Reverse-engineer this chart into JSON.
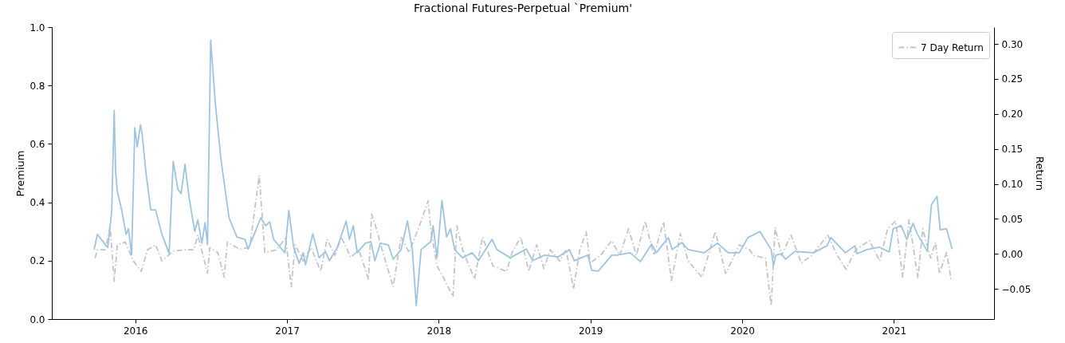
{
  "chart_data": {
    "type": "line",
    "title": "Fractional Futures-Perpetual `Premium'",
    "ylabel": "Premium",
    "y2label": "Return",
    "xlim": [
      2015.45,
      2021.66
    ],
    "xticks": [
      2016,
      2017,
      2018,
      2019,
      2020,
      2021
    ],
    "ylim": [
      0,
      1.0
    ],
    "yticks": [
      {
        "value": 0,
        "label": "0.0"
      },
      0.2,
      0.4,
      0.6,
      0.8,
      {
        "value": 1.0,
        "label": "1.0"
      }
    ],
    "y2lim": [
      -0.093,
      0.324
    ],
    "y2ticks": [
      {
        "value": -0.05,
        "label": "−0.05"
      },
      {
        "value": 0,
        "label": "0.00"
      },
      0.05,
      {
        "value": 0.1,
        "label": "0.10"
      },
      0.15,
      {
        "value": 0.2,
        "label": "0.20"
      },
      0.25,
      {
        "value": 0.3,
        "label": "0.30"
      }
    ],
    "legend": "top right",
    "series": [
      {
        "name": "7 Day Return",
        "color": "#c4c4c4",
        "axis": "y2",
        "line_style": "dashed",
        "x": [
          2015.735,
          2015.75,
          2015.803,
          2015.834,
          2015.861,
          2015.882,
          2015.934,
          2015.987,
          2016.039,
          2016.081,
          2016.134,
          2016.176,
          2016.25,
          2016.318,
          2016.386,
          2016.412,
          2016.476,
          2016.491,
          2016.544,
          2016.586,
          2016.607,
          2016.686,
          2016.754,
          2016.817,
          2016.854,
          2016.933,
          2016.991,
          2017.028,
          2017.054,
          2017.107,
          2017.159,
          2017.222,
          2017.264,
          2017.316,
          2017.358,
          2017.421,
          2017.474,
          2017.537,
          2017.558,
          2017.595,
          2017.632,
          2017.7,
          2017.752,
          2017.805,
          2017.879,
          2017.931,
          2017.947,
          2017.989,
          2018.036,
          2018.094,
          2018.12,
          2018.157,
          2018.236,
          2018.289,
          2018.357,
          2018.447,
          2018.483,
          2018.541,
          2018.593,
          2018.646,
          2018.693,
          2018.735,
          2018.798,
          2018.84,
          2018.888,
          2018.93,
          2018.972,
          2018.998,
          2019.067,
          2019.14,
          2019.193,
          2019.251,
          2019.303,
          2019.36,
          2019.418,
          2019.482,
          2019.534,
          2019.592,
          2019.644,
          2019.734,
          2019.823,
          2019.891,
          2019.981,
          2020.049,
          2020.075,
          2020.154,
          2020.191,
          2020.217,
          2020.259,
          2020.322,
          2020.39,
          2020.459,
          2020.564,
          2020.627,
          2020.685,
          2020.748,
          2020.838,
          2020.906,
          2020.959,
          2021.011,
          2021.058,
          2021.1,
          2021.158,
          2021.19,
          2021.242,
          2021.274,
          2021.3,
          2021.347,
          2021.378
        ],
        "values": [
          -0.006,
          0.006,
          0.006,
          0.04,
          -0.039,
          0.013,
          0.017,
          -0.01,
          -0.025,
          0.006,
          0.013,
          -0.01,
          0.004,
          0.006,
          0.006,
          0.027,
          -0.027,
          0.009,
          0.002,
          -0.033,
          0.017,
          0.007,
          0.009,
          0.112,
          0.002,
          0.006,
          0.023,
          -0.047,
          0.013,
          -0.01,
          0.009,
          -0.025,
          0.021,
          -0.002,
          0.024,
          -0.005,
          0.006,
          -0.036,
          0.057,
          0.032,
          0.002,
          -0.047,
          0.024,
          0.002,
          0.044,
          0.076,
          0.036,
          -0.017,
          -0.036,
          -0.061,
          0.04,
          0.006,
          -0.036,
          0.024,
          -0.017,
          -0.025,
          0.002,
          0.024,
          -0.025,
          0.013,
          -0.021,
          0.006,
          -0.01,
          0.006,
          -0.05,
          0.006,
          0.032,
          -0.013,
          -0.002,
          0.019,
          -0.002,
          0.036,
          -0.002,
          0.047,
          -0.002,
          0.046,
          -0.038,
          0.029,
          -0.01,
          -0.033,
          0.032,
          -0.028,
          0.013,
          0.006,
          -0.002,
          -0.006,
          -0.074,
          0.038,
          -0.002,
          0.027,
          -0.013,
          -0.002,
          0.027,
          -0.002,
          -0.022,
          0.006,
          0.019,
          -0.01,
          0.036,
          0.047,
          -0.033,
          0.049,
          -0.034,
          0.036,
          -0.006,
          0.017,
          -0.028,
          0.002,
          -0.038
        ]
      },
      {
        "color": "#9ec4e0",
        "line_style": "solid",
        "x": [
          2015.729,
          2015.75,
          2015.819,
          2015.845,
          2015.861,
          2015.871,
          2015.882,
          2015.908,
          2015.94,
          2015.955,
          2015.976,
          2015.997,
          2016.013,
          2016.034,
          2016.045,
          2016.071,
          2016.102,
          2016.134,
          2016.176,
          2016.223,
          2016.25,
          2016.281,
          2016.302,
          2016.328,
          2016.355,
          2016.392,
          2016.412,
          2016.439,
          2016.46,
          2016.476,
          2016.497,
          2016.528,
          2016.565,
          2016.618,
          2016.67,
          2016.723,
          2016.744,
          2016.828,
          2016.859,
          2016.886,
          2016.912,
          2016.986,
          2017.012,
          2017.044,
          2017.08,
          2017.107,
          2017.122,
          2017.17,
          2017.212,
          2017.253,
          2017.28,
          2017.332,
          2017.39,
          2017.411,
          2017.437,
          2017.463,
          2017.516,
          2017.553,
          2017.579,
          2017.616,
          2017.668,
          2017.7,
          2017.752,
          2017.794,
          2017.826,
          2017.852,
          2017.884,
          2017.947,
          2017.963,
          2017.989,
          2018.021,
          2018.052,
          2018.078,
          2018.105,
          2018.157,
          2018.22,
          2018.262,
          2018.352,
          2018.383,
          2018.472,
          2018.577,
          2018.62,
          2018.698,
          2018.788,
          2018.861,
          2018.893,
          2018.982,
          2019.009,
          2019.051,
          2019.14,
          2019.172,
          2019.261,
          2019.329,
          2019.403,
          2019.434,
          2019.513,
          2019.539,
          2019.602,
          2019.644,
          2019.749,
          2019.838,
          2019.907,
          2019.981,
          2020.038,
          2020.117,
          2020.191,
          2020.206,
          2020.222,
          2020.259,
          2020.285,
          2020.348,
          2020.469,
          2020.559,
          2020.585,
          2020.68,
          2020.743,
          2020.758,
          2020.822,
          2020.906,
          2020.969,
          2020.995,
          2021.048,
          2021.085,
          2021.126,
          2021.153,
          2021.221,
          2021.247,
          2021.284,
          2021.305,
          2021.347,
          2021.384
        ],
        "values": [
          0.238,
          0.29,
          0.245,
          0.37,
          0.715,
          0.5,
          0.437,
          0.38,
          0.29,
          0.31,
          0.22,
          0.655,
          0.59,
          0.665,
          0.635,
          0.5,
          0.374,
          0.374,
          0.29,
          0.225,
          0.54,
          0.445,
          0.43,
          0.53,
          0.415,
          0.3,
          0.34,
          0.26,
          0.33,
          0.255,
          0.956,
          0.737,
          0.546,
          0.347,
          0.281,
          0.273,
          0.24,
          0.347,
          0.32,
          0.333,
          0.273,
          0.227,
          0.372,
          0.246,
          0.191,
          0.227,
          0.186,
          0.292,
          0.21,
          0.232,
          0.2,
          0.246,
          0.336,
          0.273,
          0.32,
          0.227,
          0.26,
          0.265,
          0.2,
          0.26,
          0.254,
          0.205,
          0.238,
          0.336,
          0.238,
          0.046,
          0.238,
          0.265,
          0.32,
          0.21,
          0.407,
          0.281,
          0.309,
          0.238,
          0.21,
          0.227,
          0.2,
          0.273,
          0.238,
          0.21,
          0.24,
          0.2,
          0.219,
          0.213,
          0.238,
          0.2,
          0.219,
          0.167,
          0.164,
          0.219,
          0.219,
          0.227,
          0.197,
          0.257,
          0.227,
          0.279,
          0.238,
          0.262,
          0.238,
          0.227,
          0.26,
          0.227,
          0.227,
          0.279,
          0.3,
          0.238,
          0.183,
          0.219,
          0.224,
          0.205,
          0.232,
          0.227,
          0.251,
          0.279,
          0.227,
          0.251,
          0.224,
          0.238,
          0.246,
          0.23,
          0.309,
          0.32,
          0.273,
          0.328,
          0.292,
          0.232,
          0.391,
          0.421,
          0.306,
          0.309,
          0.24
        ]
      }
    ]
  }
}
